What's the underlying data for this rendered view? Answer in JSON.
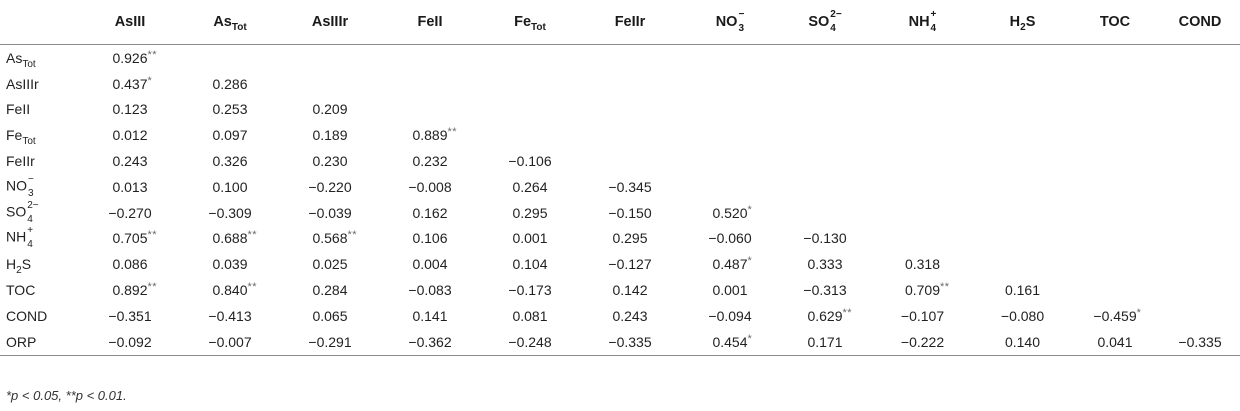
{
  "columns": [
    {
      "base": "AsIII",
      "sub": "",
      "sup": ""
    },
    {
      "base": "As",
      "sub": "Tot",
      "sup": ""
    },
    {
      "base": "AsIIIr",
      "sub": "",
      "sup": ""
    },
    {
      "base": "FeII",
      "sub": "",
      "sup": ""
    },
    {
      "base": "Fe",
      "sub": "Tot",
      "sup": ""
    },
    {
      "base": "FeIIr",
      "sub": "",
      "sup": ""
    },
    {
      "base": "NO",
      "sub": "3",
      "sup": "−"
    },
    {
      "base": "SO",
      "sub": "4",
      "sup": "2−"
    },
    {
      "base": "NH",
      "sub": "4",
      "sup": "+"
    },
    {
      "base": "H",
      "sub": "2",
      "sup": "",
      "tail": "S"
    },
    {
      "base": "TOC",
      "sub": "",
      "sup": ""
    },
    {
      "base": "COND",
      "sub": "",
      "sup": ""
    }
  ],
  "rows": [
    {
      "label": {
        "base": "As",
        "sub": "Tot",
        "sup": ""
      },
      "cells": [
        {
          "v": "0.926",
          "s": "**"
        }
      ]
    },
    {
      "label": {
        "base": "AsIIIr",
        "sub": "",
        "sup": ""
      },
      "cells": [
        {
          "v": "0.437",
          "s": "*"
        },
        {
          "v": "0.286",
          "s": ""
        }
      ]
    },
    {
      "label": {
        "base": "FeII",
        "sub": "",
        "sup": ""
      },
      "cells": [
        {
          "v": "0.123",
          "s": ""
        },
        {
          "v": "0.253",
          "s": ""
        },
        {
          "v": "0.209",
          "s": ""
        }
      ]
    },
    {
      "label": {
        "base": "Fe",
        "sub": "Tot",
        "sup": ""
      },
      "cells": [
        {
          "v": "0.012",
          "s": ""
        },
        {
          "v": "0.097",
          "s": ""
        },
        {
          "v": "0.189",
          "s": ""
        },
        {
          "v": "0.889",
          "s": "**"
        }
      ]
    },
    {
      "label": {
        "base": "FeIIr",
        "sub": "",
        "sup": ""
      },
      "cells": [
        {
          "v": "0.243",
          "s": ""
        },
        {
          "v": "0.326",
          "s": ""
        },
        {
          "v": "0.230",
          "s": ""
        },
        {
          "v": "0.232",
          "s": ""
        },
        {
          "v": "−0.106",
          "s": ""
        }
      ]
    },
    {
      "label": {
        "base": "NO",
        "sub": "3",
        "sup": "−"
      },
      "cells": [
        {
          "v": "0.013",
          "s": ""
        },
        {
          "v": "0.100",
          "s": ""
        },
        {
          "v": "−0.220",
          "s": ""
        },
        {
          "v": "−0.008",
          "s": ""
        },
        {
          "v": "0.264",
          "s": ""
        },
        {
          "v": "−0.345",
          "s": ""
        }
      ]
    },
    {
      "label": {
        "base": "SO",
        "sub": "4",
        "sup": "2−"
      },
      "cells": [
        {
          "v": "−0.270",
          "s": ""
        },
        {
          "v": "−0.309",
          "s": ""
        },
        {
          "v": "−0.039",
          "s": ""
        },
        {
          "v": "0.162",
          "s": ""
        },
        {
          "v": "0.295",
          "s": ""
        },
        {
          "v": "−0.150",
          "s": ""
        },
        {
          "v": "0.520",
          "s": "*"
        }
      ]
    },
    {
      "label": {
        "base": "NH",
        "sub": "4",
        "sup": "+"
      },
      "cells": [
        {
          "v": "0.705",
          "s": "**"
        },
        {
          "v": "0.688",
          "s": "**"
        },
        {
          "v": "0.568",
          "s": "**"
        },
        {
          "v": "0.106",
          "s": ""
        },
        {
          "v": "0.001",
          "s": ""
        },
        {
          "v": "0.295",
          "s": ""
        },
        {
          "v": "−0.060",
          "s": ""
        },
        {
          "v": "−0.130",
          "s": ""
        }
      ]
    },
    {
      "label": {
        "base": "H",
        "sub": "2",
        "sup": "",
        "tail": "S"
      },
      "cells": [
        {
          "v": "0.086",
          "s": ""
        },
        {
          "v": "0.039",
          "s": ""
        },
        {
          "v": "0.025",
          "s": ""
        },
        {
          "v": "0.004",
          "s": ""
        },
        {
          "v": "0.104",
          "s": ""
        },
        {
          "v": "−0.127",
          "s": ""
        },
        {
          "v": "0.487",
          "s": "*"
        },
        {
          "v": "0.333",
          "s": ""
        },
        {
          "v": "0.318",
          "s": ""
        }
      ]
    },
    {
      "label": {
        "base": "TOC",
        "sub": "",
        "sup": ""
      },
      "cells": [
        {
          "v": "0.892",
          "s": "**"
        },
        {
          "v": "0.840",
          "s": "**"
        },
        {
          "v": "0.284",
          "s": ""
        },
        {
          "v": "−0.083",
          "s": ""
        },
        {
          "v": "−0.173",
          "s": ""
        },
        {
          "v": "0.142",
          "s": ""
        },
        {
          "v": "0.001",
          "s": ""
        },
        {
          "v": "−0.313",
          "s": ""
        },
        {
          "v": "0.709",
          "s": "**"
        },
        {
          "v": "0.161",
          "s": ""
        }
      ]
    },
    {
      "label": {
        "base": "COND",
        "sub": "",
        "sup": ""
      },
      "cells": [
        {
          "v": "−0.351",
          "s": ""
        },
        {
          "v": "−0.413",
          "s": ""
        },
        {
          "v": "0.065",
          "s": ""
        },
        {
          "v": "0.141",
          "s": ""
        },
        {
          "v": "0.081",
          "s": ""
        },
        {
          "v": "0.243",
          "s": ""
        },
        {
          "v": "−0.094",
          "s": ""
        },
        {
          "v": "0.629",
          "s": "**"
        },
        {
          "v": "−0.107",
          "s": ""
        },
        {
          "v": "−0.080",
          "s": ""
        },
        {
          "v": "−0.459",
          "s": "*"
        }
      ]
    },
    {
      "label": {
        "base": "ORP",
        "sub": "",
        "sup": ""
      },
      "cells": [
        {
          "v": "−0.092",
          "s": ""
        },
        {
          "v": "−0.007",
          "s": ""
        },
        {
          "v": "−0.291",
          "s": ""
        },
        {
          "v": "−0.362",
          "s": ""
        },
        {
          "v": "−0.248",
          "s": ""
        },
        {
          "v": "−0.335",
          "s": ""
        },
        {
          "v": "0.454",
          "s": "*"
        },
        {
          "v": "0.171",
          "s": ""
        },
        {
          "v": "−0.222",
          "s": ""
        },
        {
          "v": "0.140",
          "s": ""
        },
        {
          "v": "0.041",
          "s": ""
        },
        {
          "v": "−0.335",
          "s": ""
        }
      ]
    }
  ],
  "footnote": "*p < 0.05, **p < 0.01."
}
